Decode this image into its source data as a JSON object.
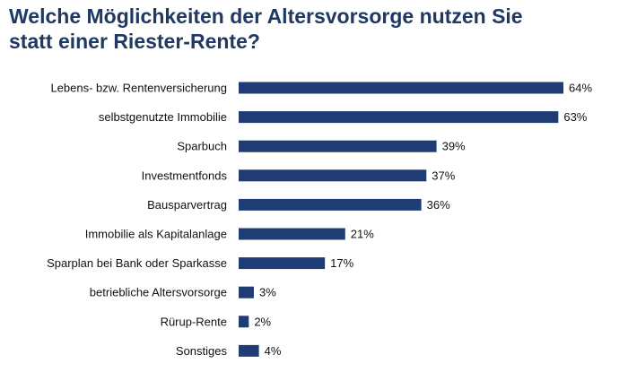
{
  "title_lines": [
    "Welche Möglichkeiten der Altersvorsorge nutzen Sie",
    "statt einer Riester-Rente?"
  ],
  "colors": {
    "title": "#1f3864",
    "bar": "#1f3d74"
  },
  "chart_data": {
    "type": "bar",
    "orientation": "horizontal",
    "title": "Welche Möglichkeiten der Altersvorsorge nutzen Sie statt einer Riester-Rente?",
    "categories": [
      "Lebens- bzw. Rentenversicherung",
      "selbstgenutzte Immobilie",
      "Sparbuch",
      "Investmentfonds",
      "Bausparvertrag",
      "Immobilie als Kapitalanlage",
      "Sparplan bei Bank oder Sparkasse",
      "betriebliche Altersvorsorge",
      "Rürup-Rente",
      "Sonstiges"
    ],
    "values": [
      64,
      63,
      39,
      37,
      36,
      21,
      17,
      3,
      2,
      4
    ],
    "value_labels": [
      "64%",
      "63%",
      "39%",
      "37%",
      "36%",
      "21%",
      "17%",
      "3%",
      "2%",
      "4%"
    ],
    "unit": "%",
    "xlim": [
      0,
      100
    ],
    "grid": false,
    "legend": "none"
  }
}
